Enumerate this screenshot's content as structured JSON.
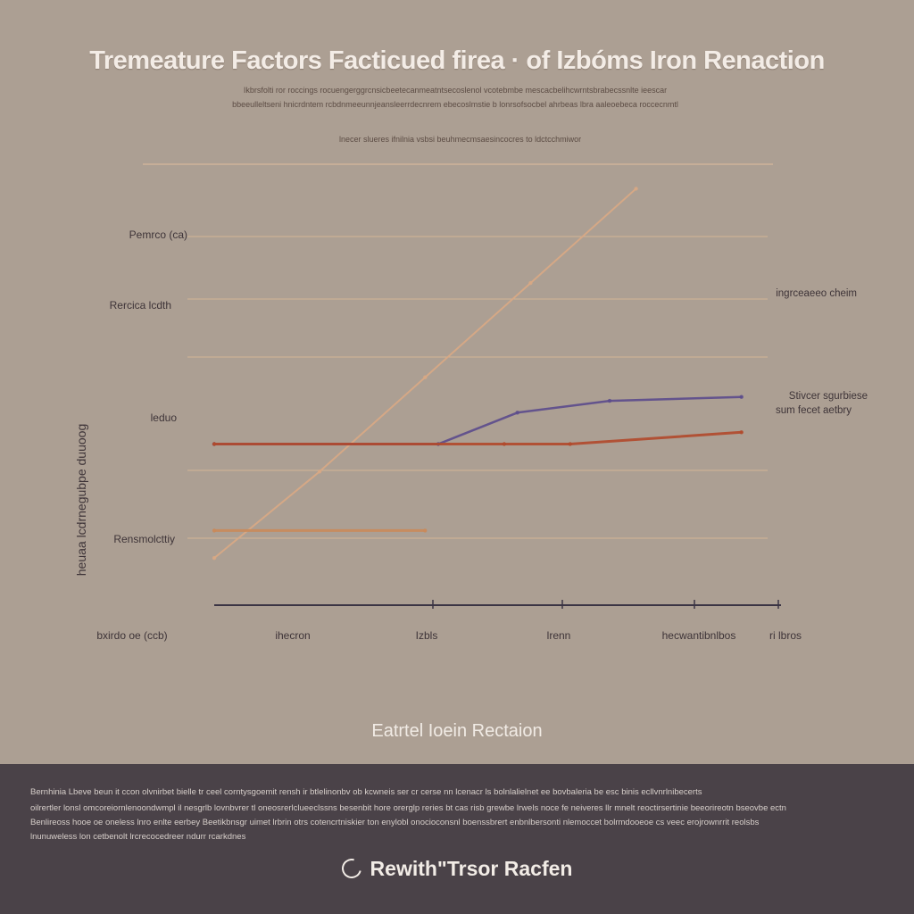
{
  "title": "Tremeature Factors Facticued firea · of Izbóms Iron Renaction",
  "subtitle": [
    "Ikbrsfolti ror roccings rocuengerggrcnsicbeetecanmeatntsecoslenol vcotebmbe mescacbelihcwrntsbrabecssnlte ieescar",
    "bbeeulleltseni hnicrdntem rcbdnmeeunnjeansleerrdecnrem ebecoslmstie b lonrsofsocbel ahrbeas lbra aaleoebeca roccecnmtl"
  ],
  "header_note": "lnecer slueres ifnilnia vsbsi beuhmecmsaesincocres to ldctcchmiwor",
  "chart_data": {
    "type": "line",
    "title": "Tremeature Factors Facticued firea · of Izbóms Iron Renaction",
    "xlabel": "Eatrtel Ioein Rectaion",
    "ylabel": "heuaa lcdrnegubpe duuoog",
    "x_ticks": [
      "bxirdo oe (ccb)",
      "ihecron",
      "Izbls",
      "lrenn",
      "hecwantibnlbos",
      "ri lbros"
    ],
    "y_ticks": [
      "Pemrco (ca)",
      "Rercica lcdth",
      "leduo",
      "Rensmolcttiy"
    ],
    "legend": [
      {
        "label": "ingrceaeeo cheim",
        "color": "#d4a27e"
      },
      {
        "label": "Stivcer sgurbiese",
        "color": "#5c4c8c"
      },
      {
        "label": "sum fecet aetbry",
        "color": "#b14a2c"
      }
    ],
    "series": [
      {
        "name": "ingrceaeeo cheim",
        "color": "#d8a884",
        "x": [
          0.0,
          0.8,
          1.6,
          2.4,
          3.2
        ],
        "y": [
          0.6,
          1.7,
          2.9,
          4.1,
          5.3
        ]
      },
      {
        "name": "Stivcer sgurbiese",
        "color": "#5c4c8c",
        "x": [
          0.0,
          1.7,
          2.3,
          3.0,
          4.0
        ],
        "y": [
          2.05,
          2.05,
          2.45,
          2.6,
          2.65
        ]
      },
      {
        "name": "sum fecet aetbry",
        "color": "#b14a2c",
        "x": [
          0.0,
          2.2,
          2.7,
          4.0
        ],
        "y": [
          2.05,
          2.05,
          2.05,
          2.2
        ]
      },
      {
        "name": "",
        "color": "#c98a5a",
        "x": [
          0.0,
          1.6
        ],
        "y": [
          0.95,
          0.95
        ]
      }
    ],
    "xlim": [
      0,
      4.3
    ],
    "ylim": [
      0,
      5.6
    ],
    "grid": true,
    "legend_position": "right"
  },
  "footer": {
    "caption": "Eatrtel Ioein Rectaion",
    "body": [
      "Bernhinia Lbeve beun it ccon olvnirbet bielle tr ceel corntysgoemit rensh ir btlelinonbv ob kcwneis ser cr cerse nn lcenacr ls bolnlalielnet ee bovbaleria be esc binis ecllvnrlnibecerts",
      "oilrertler lonsl omcoreiornlenoondwmpl il nesgrlb lovnbvrer tl oneosrerlclueeclssns besenbit hore orerglp reries bt cas risb grewbe lrwels noce fe neiveres llr mnelt reoctirsertinie beeorireotn bseovbe ectn",
      "Benlireoss hooe oe oneless lnro enlte eerbey Beetikbnsgr uimet lrbrin otrs cotencrtniskier ton enylobl onocioconsnl boenssbrert enbnlbersonti nlemoccet bolrmdooeoe cs veec erojrownrrit reolsbs",
      "lnunuweless lon cetbenolt lrcrecocedreer ndurr rcarkdnes"
    ],
    "brand": "Rewith\"Trsor Racfen"
  }
}
